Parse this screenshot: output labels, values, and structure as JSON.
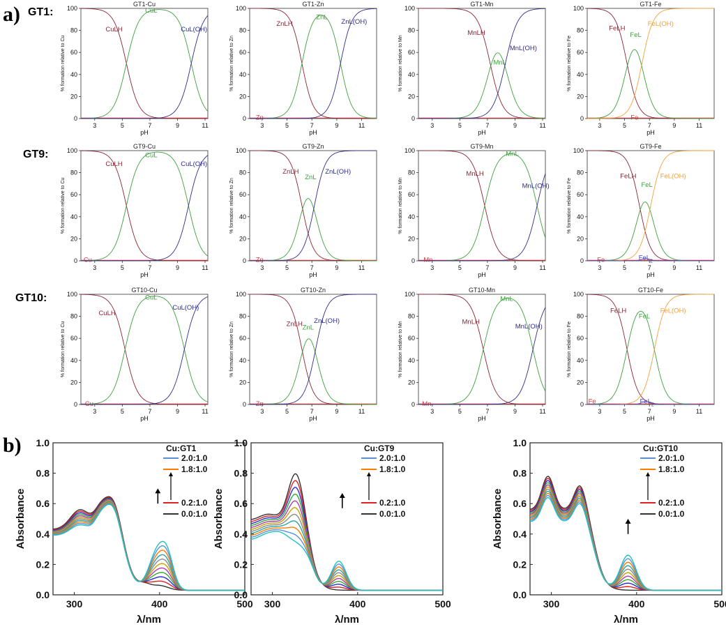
{
  "panel_labels": {
    "a": "a)",
    "b": "b)"
  },
  "row_labels": [
    "GT1:",
    "GT9:",
    "GT10:"
  ],
  "chart_data": [
    {
      "type": "line",
      "id": "GT1-Cu",
      "row": 0,
      "col": 0,
      "title": "GT1-Cu",
      "metal": "Cu",
      "xlabel": "pH",
      "ylabel": "% formation relative to Cu",
      "xlim": [
        2,
        11.2
      ],
      "ylim": [
        0,
        100
      ],
      "xticks": [
        3,
        5,
        7,
        9,
        11
      ],
      "yticks": [
        0,
        20,
        40,
        60,
        80,
        100
      ],
      "curves": [
        {
          "name": "Cu",
          "kind": "free",
          "value": 0.5,
          "label": ""
        },
        {
          "name": "CuLH",
          "kind": "fall",
          "center": 5.3,
          "width": 0.45,
          "label": "CuLH"
        },
        {
          "name": "CuL",
          "kind": "peak",
          "up": 5.3,
          "down": 10.0,
          "width": 0.45,
          "label": "CuL"
        },
        {
          "name": "CuL(OH)",
          "kind": "rise",
          "center": 10.0,
          "width": 0.45,
          "label": "CuL(OH)"
        }
      ]
    },
    {
      "type": "line",
      "id": "GT1-Zn",
      "row": 0,
      "col": 1,
      "title": "GT1-Zn",
      "metal": "Zn",
      "xlabel": "pH",
      "ylabel": "% formation relative to Zn",
      "xlim": [
        2,
        12.2
      ],
      "ylim": [
        0,
        100
      ],
      "xticks": [
        3,
        5,
        7,
        9,
        11
      ],
      "yticks": [
        0,
        20,
        40,
        60,
        80,
        100
      ],
      "curves": [
        {
          "name": "Zn",
          "kind": "free",
          "value": 0.5,
          "label": "Zn"
        },
        {
          "name": "ZnLH",
          "kind": "fall",
          "center": 6.2,
          "width": 0.45,
          "label": "ZnLH"
        },
        {
          "name": "ZnL",
          "kind": "peak",
          "up": 6.2,
          "down": 9.3,
          "width": 0.45,
          "label": "ZnL"
        },
        {
          "name": "ZnL(OH)",
          "kind": "rise",
          "center": 9.3,
          "width": 0.45,
          "label": "ZnL(OH)"
        }
      ]
    },
    {
      "type": "line",
      "id": "GT1-Mn",
      "row": 0,
      "col": 2,
      "title": "GT1-Mn",
      "metal": "Mn",
      "xlabel": "pH",
      "ylabel": "% formation relative to Mn",
      "xlim": [
        2,
        11.2
      ],
      "ylim": [
        0,
        100
      ],
      "xticks": [
        3,
        5,
        7,
        9,
        11
      ],
      "yticks": [
        0,
        20,
        40,
        60,
        80,
        100
      ],
      "curves": [
        {
          "name": "Mn",
          "kind": "free",
          "value": 0.5,
          "label": ""
        },
        {
          "name": "MnLH",
          "kind": "fall",
          "center": 7.2,
          "width": 0.45,
          "label": "MnLH"
        },
        {
          "name": "MnL",
          "kind": "peak",
          "up": 7.2,
          "down": 8.3,
          "width": 0.45,
          "label": "MnL"
        },
        {
          "name": "MnL(OH)",
          "kind": "rise",
          "center": 8.3,
          "width": 0.45,
          "label": "MnL(OH)"
        }
      ]
    },
    {
      "type": "line",
      "id": "GT1-Fe",
      "row": 0,
      "col": 3,
      "title": "GT1-Fe",
      "metal": "Fe",
      "xlabel": "pH",
      "ylabel": "% formation relative to Fe",
      "xlim": [
        2,
        12.2
      ],
      "ylim": [
        0,
        100
      ],
      "xticks": [
        3,
        5,
        7,
        9,
        11
      ],
      "yticks": [
        0,
        20,
        40,
        60,
        80,
        100
      ],
      "curves": [
        {
          "name": "Fe",
          "kind": "free",
          "value": 0.5,
          "label": "Fe"
        },
        {
          "name": "FeLH",
          "kind": "fall",
          "center": 5.2,
          "width": 0.45,
          "label": "FeLH"
        },
        {
          "name": "FeL",
          "kind": "peak",
          "up": 5.2,
          "down": 6.4,
          "width": 0.45,
          "label": "FeL"
        },
        {
          "name": "FeL(OH)",
          "kind": "rise",
          "center": 6.4,
          "width": 0.45,
          "label": "FeL(OH)"
        }
      ]
    },
    {
      "type": "line",
      "id": "GT9-Cu",
      "row": 1,
      "col": 0,
      "title": "GT9-Cu",
      "metal": "Cu",
      "xlabel": "pH",
      "ylabel": "% formation relative to Cu",
      "xlim": [
        2,
        11.2
      ],
      "ylim": [
        0,
        100
      ],
      "xticks": [
        3,
        5,
        7,
        9,
        11
      ],
      "yticks": [
        0,
        20,
        40,
        60,
        80,
        100
      ],
      "curves": [
        {
          "name": "Cu",
          "kind": "free",
          "value": 0.5,
          "label": "Cu"
        },
        {
          "name": "CuLH",
          "kind": "fall",
          "center": 5.3,
          "width": 0.45,
          "label": "CuLH"
        },
        {
          "name": "CuL",
          "kind": "peak",
          "up": 5.3,
          "down": 9.8,
          "width": 0.45,
          "label": "CuL"
        },
        {
          "name": "CuL(OH)",
          "kind": "rise",
          "center": 9.8,
          "width": 0.45,
          "label": "CuL(OH)"
        }
      ]
    },
    {
      "type": "line",
      "id": "GT9-Zn",
      "row": 1,
      "col": 1,
      "title": "GT9-Zn",
      "metal": "Zn",
      "xlabel": "pH",
      "ylabel": "% formation relative to Zn",
      "xlim": [
        2,
        12.2
      ],
      "ylim": [
        0,
        100
      ],
      "xticks": [
        3,
        5,
        7,
        9,
        11
      ],
      "yticks": [
        0,
        20,
        40,
        60,
        80,
        100
      ],
      "curves": [
        {
          "name": "Zn",
          "kind": "free",
          "value": 0.5,
          "label": "Zn"
        },
        {
          "name": "ZnLH",
          "kind": "fall",
          "center": 6.2,
          "width": 0.45,
          "label": "ZnLH"
        },
        {
          "name": "ZnL",
          "kind": "peak",
          "up": 6.2,
          "down": 7.2,
          "width": 0.45,
          "label": "ZnL"
        },
        {
          "name": "ZnL(OH)",
          "kind": "rise",
          "center": 7.2,
          "width": 0.45,
          "label": "ZnL(OH)"
        }
      ]
    },
    {
      "type": "line",
      "id": "GT9-Mn",
      "row": 1,
      "col": 2,
      "title": "GT9-Mn",
      "metal": "Mn",
      "xlabel": "pH",
      "ylabel": "% formation relative to Mn",
      "xlim": [
        2,
        11.2
      ],
      "ylim": [
        0,
        100
      ],
      "xticks": [
        3,
        5,
        7,
        9,
        11
      ],
      "yticks": [
        0,
        20,
        40,
        60,
        80,
        100
      ],
      "curves": [
        {
          "name": "Mn",
          "kind": "free",
          "value": 0.5,
          "label": "Mn"
        },
        {
          "name": "MnLH",
          "kind": "fall",
          "center": 6.8,
          "width": 0.45,
          "label": "MnLH"
        },
        {
          "name": "MnL",
          "kind": "peak",
          "up": 6.8,
          "down": 10.6,
          "width": 0.45,
          "label": "MnL"
        },
        {
          "name": "MnL(OH)",
          "kind": "rise",
          "center": 10.6,
          "width": 0.45,
          "label": "MnL(OH)"
        }
      ]
    },
    {
      "type": "line",
      "id": "GT9-Fe",
      "row": 1,
      "col": 3,
      "title": "GT9-Fe",
      "metal": "Fe",
      "xlabel": "pH",
      "ylabel": "% formation relative to Fe",
      "xlim": [
        2,
        12.2
      ],
      "ylim": [
        0,
        100
      ],
      "xticks": [
        3,
        5,
        7,
        9,
        11
      ],
      "yticks": [
        0,
        20,
        40,
        60,
        80,
        100
      ],
      "curves": [
        {
          "name": "Fe",
          "kind": "free",
          "value": 0.5,
          "label": "Fe"
        },
        {
          "name": "FeLH",
          "kind": "fall",
          "center": 6.2,
          "width": 0.45,
          "label": "FeLH"
        },
        {
          "name": "FeL",
          "kind": "peak",
          "up": 6.2,
          "down": 7.1,
          "width": 0.45,
          "label": "FeL"
        },
        {
          "name": "FeL(OH)",
          "kind": "rise",
          "center": 7.1,
          "width": 0.45,
          "label": "FeL(OH)"
        },
        {
          "name": "FeL2",
          "kind": "bump",
          "center": 6.7,
          "height": 2,
          "sigma": 0.5,
          "label": "FeL",
          "sub": "2"
        }
      ]
    },
    {
      "type": "line",
      "id": "GT10-Cu",
      "row": 2,
      "col": 0,
      "title": "GT10-Cu",
      "metal": "Cu",
      "xlabel": "pH",
      "ylabel": "% formation relative to Cu",
      "xlim": [
        2,
        11.2
      ],
      "ylim": [
        0,
        100
      ],
      "xticks": [
        3,
        5,
        7,
        9,
        11
      ],
      "yticks": [
        0,
        20,
        40,
        60,
        80,
        100
      ],
      "curves": [
        {
          "name": "Cu",
          "kind": "free",
          "value": 0.5,
          "label": "Cu"
        },
        {
          "name": "CuLH",
          "kind": "fall",
          "center": 5.2,
          "width": 0.45,
          "label": "CuLH"
        },
        {
          "name": "CuL",
          "kind": "peak",
          "up": 5.2,
          "down": 9.5,
          "width": 0.45,
          "label": "CuL"
        },
        {
          "name": "CuL(OH)",
          "kind": "rise",
          "center": 9.5,
          "width": 0.45,
          "label": "CuL(OH)"
        }
      ]
    },
    {
      "type": "line",
      "id": "GT10-Zn",
      "row": 2,
      "col": 1,
      "title": "GT10-Zn",
      "metal": "Zn",
      "xlabel": "pH",
      "ylabel": "% formation relative to Zn",
      "xlim": [
        2,
        12.2
      ],
      "ylim": [
        0,
        100
      ],
      "xticks": [
        3,
        5,
        7,
        9,
        11
      ],
      "yticks": [
        0,
        20,
        40,
        60,
        80,
        100
      ],
      "curves": [
        {
          "name": "Zn",
          "kind": "free",
          "value": 0.5,
          "label": "Zn"
        },
        {
          "name": "ZnLH",
          "kind": "fall",
          "center": 6.2,
          "width": 0.45,
          "label": "ZnLH"
        },
        {
          "name": "ZnL",
          "kind": "peak",
          "up": 6.2,
          "down": 7.3,
          "width": 0.45,
          "label": "ZnL"
        },
        {
          "name": "ZnL(OH)",
          "kind": "rise",
          "center": 7.3,
          "width": 0.45,
          "label": "ZnL(OH)"
        }
      ]
    },
    {
      "type": "line",
      "id": "GT10-Mn",
      "row": 2,
      "col": 2,
      "title": "GT10-Mn",
      "metal": "Mn",
      "xlabel": "pH",
      "ylabel": "% formation relative to Mn",
      "xlim": [
        2,
        11.2
      ],
      "ylim": [
        0,
        100
      ],
      "xticks": [
        3,
        5,
        7,
        9,
        11
      ],
      "yticks": [
        0,
        20,
        40,
        60,
        80,
        100
      ],
      "curves": [
        {
          "name": "Mn",
          "kind": "free",
          "value": 0.5,
          "label": "Mn"
        },
        {
          "name": "MnLH",
          "kind": "fall",
          "center": 6.7,
          "width": 0.45,
          "label": "MnLH"
        },
        {
          "name": "MnL",
          "kind": "peak",
          "up": 6.7,
          "down": 10.3,
          "width": 0.45,
          "label": "MnL"
        },
        {
          "name": "MnL(OH)",
          "kind": "rise",
          "center": 10.3,
          "width": 0.45,
          "label": "MnL(OH)"
        }
      ]
    },
    {
      "type": "line",
      "id": "GT10-Fe",
      "row": 2,
      "col": 3,
      "title": "GT10-Fe",
      "metal": "Fe",
      "xlabel": "pH",
      "ylabel": "% formation relative to Fe",
      "xlim": [
        2,
        12.2
      ],
      "ylim": [
        0,
        100
      ],
      "xticks": [
        3,
        5,
        7,
        9,
        11
      ],
      "yticks": [
        0,
        20,
        40,
        60,
        80,
        100
      ],
      "curves": [
        {
          "name": "Fe",
          "kind": "free",
          "value": 0.5,
          "label": "Fe"
        },
        {
          "name": "FeLH",
          "kind": "fall",
          "center": 5.2,
          "width": 0.45,
          "label": "FeLH"
        },
        {
          "name": "FeL",
          "kind": "peak",
          "up": 5.2,
          "down": 7.4,
          "width": 0.45,
          "label": "FeL"
        },
        {
          "name": "FeL(OH)",
          "kind": "rise",
          "center": 7.4,
          "width": 0.45,
          "label": "FeL(OH)"
        },
        {
          "name": "FeL2",
          "kind": "bump",
          "center": 6.8,
          "height": 2.5,
          "sigma": 0.6,
          "label": "FeL",
          "sub": "2"
        }
      ]
    },
    {
      "type": "line",
      "id": "Cu:GT1",
      "panel": "b",
      "index": 0,
      "xlabel": "λ/nm",
      "ylabel": "Absorbance",
      "xlim": [
        275,
        500
      ],
      "ylim": [
        0,
        1.0
      ],
      "xticks": [
        300,
        400,
        500
      ],
      "yticks": [
        0.0,
        0.2,
        0.4,
        0.6,
        0.8,
        1.0
      ],
      "legend_title": "Cu:GT1",
      "legend": [
        {
          "label": "2.0:1.0",
          "color": "#5b8fd6"
        },
        {
          "label": "1.8:1.0",
          "color": "#ff7a00"
        },
        {
          "label": "0.2:1.0",
          "color": "#e02020"
        },
        {
          "label": "0.0:1.0",
          "color": "#333333"
        }
      ],
      "arrow": {
        "x": 398,
        "y_from": 0.6,
        "y_to": 0.7
      },
      "start": {
        "ratio": 0,
        "peaks": [
          [
            307,
            0.13,
            16
          ],
          [
            345,
            0.23,
            14
          ],
          [
            330,
            0.09,
            10
          ],
          [
            382,
            0.03,
            10
          ],
          [
            400,
            0.03,
            14
          ]
        ],
        "baseline": 0.03,
        "edge": 360,
        "edge_h": 0.4,
        "edge_w": 7
      },
      "end": {
        "ratio": 2.0,
        "peaks": [
          [
            307,
            0.07,
            16
          ],
          [
            345,
            0.22,
            14
          ],
          [
            330,
            0.08,
            10
          ],
          [
            398,
            0.26,
            14
          ],
          [
            410,
            0.15,
            10
          ]
        ],
        "baseline": 0.03,
        "edge": 360,
        "edge_h": 0.36,
        "edge_w": 7
      }
    },
    {
      "type": "line",
      "id": "Cu:GT9",
      "panel": "b",
      "index": 1,
      "xlabel": "λ/nm",
      "ylabel": "Absorbance",
      "xlim": [
        275,
        500
      ],
      "ylim": [
        0,
        1.0
      ],
      "xticks": [
        300,
        400,
        500
      ],
      "yticks": [
        0.0,
        0.2,
        0.4,
        0.6,
        0.8,
        1.0
      ],
      "legend_title": "Cu:GT9",
      "legend": [
        {
          "label": "2.0:1.0",
          "color": "#5b8fd6"
        },
        {
          "label": "1.8:1.0",
          "color": "#ff7a00"
        },
        {
          "label": "0.2:1.0",
          "color": "#e02020"
        },
        {
          "label": "0.0:1.0",
          "color": "#333333"
        }
      ],
      "arrow": {
        "x": 382,
        "y_from": 0.57,
        "y_to": 0.67
      },
      "start": {
        "ratio": 0,
        "peaks": [
          [
            295,
            0.04,
            14
          ],
          [
            328,
            0.33,
            13
          ]
        ],
        "baseline": 0.03,
        "edge": 345,
        "edge_h": 0.46,
        "edge_w": 6
      },
      "end": {
        "ratio": 2.0,
        "peaks": [
          [
            295,
            0.04,
            14
          ],
          [
            310,
            0.04,
            12
          ],
          [
            378,
            0.19,
            12
          ],
          [
            345,
            0.02,
            8
          ]
        ],
        "baseline": 0.03,
        "edge": 345,
        "edge_h": 0.33,
        "edge_w": 6
      }
    },
    {
      "type": "line",
      "id": "Cu:GT10",
      "panel": "b",
      "index": 2,
      "xlabel": "λ/nm",
      "ylabel": "Absorbance",
      "xlim": [
        275,
        500
      ],
      "ylim": [
        0,
        1.0
      ],
      "xticks": [
        300,
        400,
        500
      ],
      "yticks": [
        0.0,
        0.2,
        0.4,
        0.6,
        0.8,
        1.0
      ],
      "legend_title": "Cu:GT10",
      "legend": [
        {
          "label": "2.0:1.0",
          "color": "#5b8fd6"
        },
        {
          "label": "1.8:1.0",
          "color": "#ff7a00"
        },
        {
          "label": "0.2:1.0",
          "color": "#e02020"
        },
        {
          "label": "0.0:1.0",
          "color": "#333333"
        }
      ],
      "arrow": {
        "x": 390,
        "y_from": 0.4,
        "y_to": 0.5
      },
      "start": {
        "ratio": 0,
        "peaks": [
          [
            296,
            0.22,
            10
          ],
          [
            334,
            0.18,
            10
          ]
        ],
        "baseline": 0.03,
        "edge": 352,
        "edge_h": 0.53,
        "edge_w": 6
      },
      "end": {
        "ratio": 2.0,
        "peaks": [
          [
            296,
            0.16,
            10
          ],
          [
            334,
            0.14,
            10
          ],
          [
            390,
            0.23,
            13
          ]
        ],
        "baseline": 0.03,
        "edge": 352,
        "edge_h": 0.45,
        "edge_w": 6
      }
    }
  ],
  "colors": {
    "free": "#d63b3b",
    "fall": "#8a2432",
    "peak": "#3aa13a",
    "rise": "#2d2d8c",
    "rise_fe": "#f2a13a",
    "bump": "#4a4abf",
    "spectra": [
      "#333333",
      "#e02020",
      "#2a2ad0",
      "#33aa33",
      "#b03ab0",
      "#c9a000",
      "#8a8a8a",
      "#2aa3a3",
      "#ff7a00",
      "#5b8fd6",
      "#20c0c0"
    ]
  }
}
